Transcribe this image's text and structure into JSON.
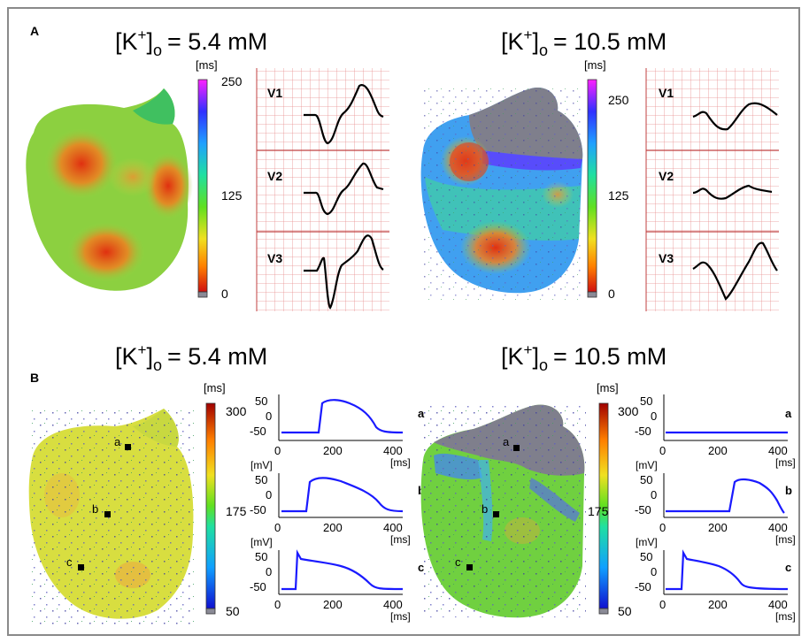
{
  "panels": {
    "A": {
      "label": "A",
      "conditions": [
        {
          "k_label": "[K",
          "k_sup": "+",
          "k_sub": "o",
          "k_value": "= 5.4 mM",
          "colorbar": {
            "unit": "[ms]",
            "ticks": [
              "250",
              "125",
              "0"
            ]
          },
          "leads": [
            "V1",
            "V2",
            "V3"
          ]
        },
        {
          "k_label": "[K",
          "k_sup": "+",
          "k_sub": "o",
          "k_value": "= 10.5 mM",
          "colorbar": {
            "unit": "[ms]",
            "ticks": [
              "250",
              "125",
              "0"
            ]
          },
          "leads": [
            "V1",
            "V2",
            "V3"
          ]
        }
      ]
    },
    "B": {
      "label": "B",
      "conditions": [
        {
          "k_label": "[K",
          "k_sup": "+",
          "k_sub": "o",
          "k_value": "= 5.4 mM",
          "colorbar": {
            "unit": "[ms]",
            "ticks": [
              "300",
              "175",
              "50"
            ]
          },
          "sites": [
            "a",
            "b",
            "c"
          ],
          "plot_axis": {
            "y_ticks": [
              "50",
              "0",
              "-50"
            ],
            "x_ticks": [
              "0",
              "200",
              "400"
            ],
            "x_unit": "[ms]",
            "y_unit": "[mV]"
          }
        },
        {
          "k_label": "[K",
          "k_sup": "+",
          "k_sub": "o",
          "k_value": "= 10.5 mM",
          "colorbar": {
            "unit": "[ms]",
            "ticks": [
              "300",
              "175",
              "50"
            ]
          },
          "sites": [
            "a",
            "b",
            "c"
          ],
          "plot_axis": {
            "y_ticks": [
              "50",
              "0",
              "-50"
            ],
            "x_ticks": [
              "0",
              "200",
              "400"
            ],
            "x_unit": "[ms]",
            "y_unit": "[mV]"
          }
        }
      ]
    }
  },
  "colors": {
    "frame": "#8a8a8a",
    "ecg_grid": "#e08080",
    "ecg_grid_major": "#c04040",
    "trace_blue": "#1a1aff",
    "tissue_gray": "#7f7f8c"
  }
}
